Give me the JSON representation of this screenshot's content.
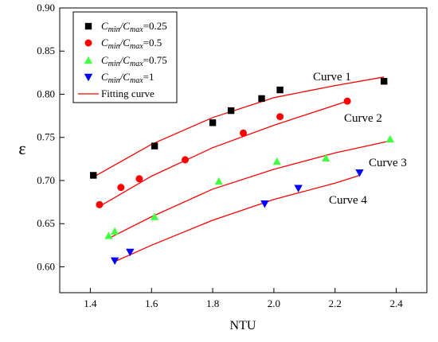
{
  "chart_data": {
    "type": "scatter",
    "xlabel": "NTU",
    "ylabel": "ε",
    "xlim": [
      1.3,
      2.5
    ],
    "ylim": [
      0.57,
      0.9
    ],
    "x_ticks": [
      "1.4",
      "1.6",
      "1.8",
      "2.0",
      "2.2",
      "2.4"
    ],
    "y_ticks": [
      "0.60",
      "0.65",
      "0.70",
      "0.75",
      "0.80",
      "0.85",
      "0.90"
    ],
    "grid": false,
    "legend_position": "top-left",
    "series": [
      {
        "name_main": "C",
        "name_sub1": "min",
        "name_mid": "/C",
        "name_sub2": "max",
        "name_tail": "=0.25",
        "marker": "square",
        "color": "#000000",
        "points": [
          [
            1.41,
            0.706
          ],
          [
            1.61,
            0.74
          ],
          [
            1.8,
            0.767
          ],
          [
            1.86,
            0.781
          ],
          [
            1.96,
            0.795
          ],
          [
            2.02,
            0.805
          ],
          [
            2.36,
            0.815
          ]
        ]
      },
      {
        "name_main": "C",
        "name_sub1": "min",
        "name_mid": "/C",
        "name_sub2": "max",
        "name_tail": "=0.5",
        "marker": "circle",
        "color": "#ff0000",
        "points": [
          [
            1.43,
            0.672
          ],
          [
            1.5,
            0.692
          ],
          [
            1.56,
            0.702
          ],
          [
            1.71,
            0.724
          ],
          [
            1.9,
            0.755
          ],
          [
            2.02,
            0.774
          ],
          [
            2.24,
            0.792
          ]
        ]
      },
      {
        "name_main": "C",
        "name_sub1": "min",
        "name_mid": "/C",
        "name_sub2": "max",
        "name_tail": "=0.75",
        "marker": "triangle-up",
        "color": "#44ff44",
        "points": [
          [
            1.46,
            0.636
          ],
          [
            1.48,
            0.641
          ],
          [
            1.61,
            0.658
          ],
          [
            1.82,
            0.699
          ],
          [
            2.01,
            0.722
          ],
          [
            2.17,
            0.726
          ],
          [
            2.38,
            0.748
          ]
        ]
      },
      {
        "name_main": "C",
        "name_sub1": "min",
        "name_mid": "/C",
        "name_sub2": "max",
        "name_tail": "=1",
        "marker": "triangle-down",
        "color": "#0000ff",
        "points": [
          [
            1.48,
            0.607
          ],
          [
            1.53,
            0.617
          ],
          [
            1.97,
            0.673
          ],
          [
            2.08,
            0.691
          ],
          [
            2.28,
            0.709
          ]
        ]
      }
    ],
    "fitting_legend": "Fitting curve",
    "fitting_color": "#ff0000",
    "fitting_curves": [
      {
        "label": "Curve 1",
        "points": [
          [
            1.41,
            0.704
          ],
          [
            1.6,
            0.742
          ],
          [
            1.8,
            0.773
          ],
          [
            2.0,
            0.796
          ],
          [
            2.2,
            0.81
          ],
          [
            2.36,
            0.82
          ]
        ]
      },
      {
        "label": "Curve 2",
        "points": [
          [
            1.43,
            0.67
          ],
          [
            1.6,
            0.705
          ],
          [
            1.8,
            0.738
          ],
          [
            2.0,
            0.764
          ],
          [
            2.24,
            0.792
          ]
        ]
      },
      {
        "label": "Curve 3",
        "points": [
          [
            1.46,
            0.633
          ],
          [
            1.6,
            0.658
          ],
          [
            1.8,
            0.69
          ],
          [
            2.0,
            0.713
          ],
          [
            2.2,
            0.732
          ],
          [
            2.38,
            0.746
          ]
        ]
      },
      {
        "label": "Curve 4",
        "points": [
          [
            1.48,
            0.606
          ],
          [
            1.6,
            0.625
          ],
          [
            1.8,
            0.654
          ],
          [
            2.0,
            0.678
          ],
          [
            2.2,
            0.697
          ],
          [
            2.28,
            0.706
          ]
        ]
      }
    ]
  }
}
